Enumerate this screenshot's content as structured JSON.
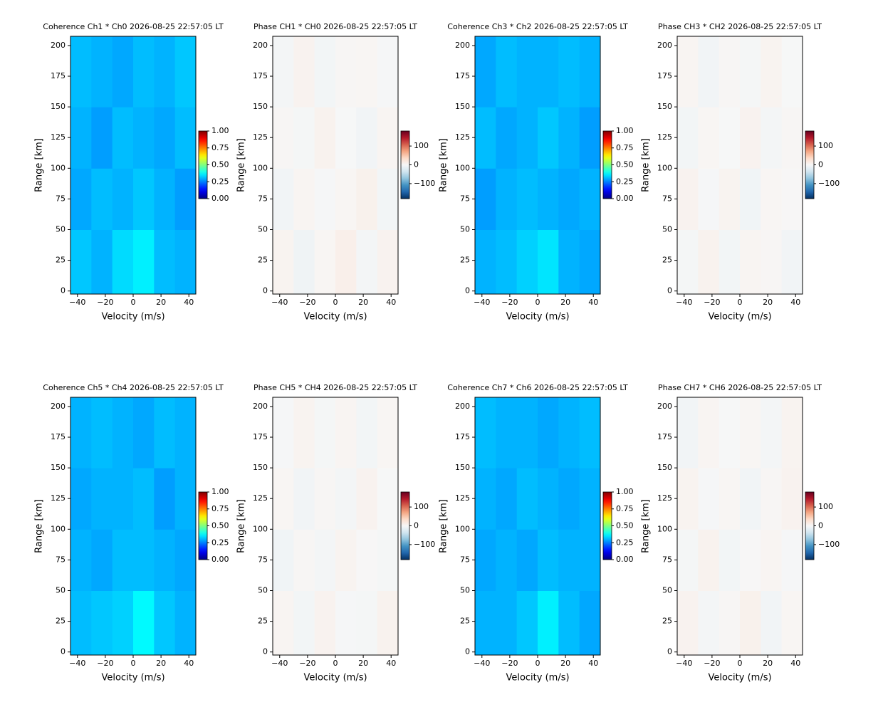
{
  "chart_data": [
    {
      "type": "heatmap",
      "title": "Coherence Ch1 * Ch0 2026-08-25 22:57:05 LT",
      "xlabel": "Velocity (m/s)",
      "ylabel": "Range [km]",
      "colormap": "jet",
      "xlim": [
        -45,
        45
      ],
      "ylim": [
        -2.5,
        207.5
      ],
      "xticks": [
        {
          "value": -40,
          "label": "−40"
        },
        {
          "value": -20,
          "label": "−20"
        },
        0,
        20,
        40
      ],
      "yticks": [
        0,
        25,
        50,
        75,
        100,
        125,
        150,
        175,
        200
      ],
      "xbins": [
        -45,
        -30,
        -15,
        0,
        15,
        30,
        45
      ],
      "ybins": [
        -2.5,
        50,
        100,
        150,
        207.5
      ],
      "values": [
        [
          0.32,
          0.3,
          0.34,
          0.36,
          0.31,
          0.3
        ],
        [
          0.29,
          0.31,
          0.3,
          0.32,
          0.3,
          0.28
        ],
        [
          0.3,
          0.28,
          0.31,
          0.3,
          0.29,
          0.31
        ],
        [
          0.31,
          0.3,
          0.29,
          0.31,
          0.3,
          0.32
        ]
      ],
      "clim": [
        0,
        1
      ],
      "cticks": [
        {
          "value": 0,
          "label": "0.00"
        },
        {
          "value": 0.25,
          "label": "0.25"
        },
        {
          "value": 0.5,
          "label": "0.50"
        },
        {
          "value": 0.75,
          "label": "0.75"
        },
        {
          "value": 1,
          "label": "1.00"
        }
      ]
    },
    {
      "type": "heatmap",
      "title": "Phase CH1 * CH0 2026-08-25 22:57:05 LT",
      "xlabel": "Velocity (m/s)",
      "ylabel": "Range [km]",
      "colormap": "RdBu_r",
      "xlim": [
        -45,
        45
      ],
      "ylim": [
        -2.5,
        207.5
      ],
      "xticks": [
        {
          "value": -40,
          "label": "−40"
        },
        {
          "value": -20,
          "label": "−20"
        },
        0,
        20,
        40
      ],
      "yticks": [
        0,
        25,
        50,
        75,
        100,
        125,
        150,
        175,
        200
      ],
      "xbins": [
        -45,
        -30,
        -15,
        0,
        15,
        30,
        45
      ],
      "ybins": [
        -2.5,
        50,
        100,
        150,
        207.5
      ],
      "values": [
        [
          5,
          -8,
          3,
          10,
          -4,
          6
        ],
        [
          -6,
          4,
          -2,
          3,
          8,
          -5
        ],
        [
          2,
          -3,
          7,
          -1,
          -6,
          4
        ],
        [
          -4,
          6,
          -5,
          2,
          3,
          -2
        ]
      ],
      "clim": [
        -180,
        180
      ],
      "cticks": [
        {
          "value": -100,
          "label": "−100"
        },
        0,
        100
      ]
    },
    {
      "type": "heatmap",
      "title": "Coherence Ch3 * Ch2 2026-08-25 22:57:05 LT",
      "xlabel": "Velocity (m/s)",
      "ylabel": "Range [km]",
      "colormap": "jet",
      "xlim": [
        -45,
        45
      ],
      "ylim": [
        -2.5,
        207.5
      ],
      "xticks": [
        {
          "value": -40,
          "label": "−40"
        },
        {
          "value": -20,
          "label": "−20"
        },
        0,
        20,
        40
      ],
      "yticks": [
        0,
        25,
        50,
        75,
        100,
        125,
        150,
        175,
        200
      ],
      "xbins": [
        -45,
        -30,
        -15,
        0,
        15,
        30,
        45
      ],
      "ybins": [
        -2.5,
        50,
        100,
        150,
        207.5
      ],
      "values": [
        [
          0.3,
          0.31,
          0.33,
          0.35,
          0.3,
          0.29
        ],
        [
          0.28,
          0.3,
          0.31,
          0.3,
          0.29,
          0.3
        ],
        [
          0.31,
          0.29,
          0.3,
          0.32,
          0.3,
          0.28
        ],
        [
          0.29,
          0.31,
          0.3,
          0.3,
          0.31,
          0.3
        ]
      ],
      "clim": [
        0,
        1
      ],
      "cticks": [
        {
          "value": 0,
          "label": "0.00"
        },
        {
          "value": 0.25,
          "label": "0.25"
        },
        {
          "value": 0.5,
          "label": "0.50"
        },
        {
          "value": 0.75,
          "label": "0.75"
        },
        {
          "value": 1,
          "label": "1.00"
        }
      ]
    },
    {
      "type": "heatmap",
      "title": "Phase CH3 * CH2 2026-08-25 22:57:05 LT",
      "xlabel": "Velocity (m/s)",
      "ylabel": "Range [km]",
      "colormap": "RdBu_r",
      "xlim": [
        -45,
        45
      ],
      "ylim": [
        -2.5,
        207.5
      ],
      "xticks": [
        {
          "value": -40,
          "label": "−40"
        },
        {
          "value": -20,
          "label": "−20"
        },
        0,
        20,
        40
      ],
      "yticks": [
        0,
        25,
        50,
        75,
        100,
        125,
        150,
        175,
        200
      ],
      "xbins": [
        -45,
        -30,
        -15,
        0,
        15,
        30,
        45
      ],
      "ybins": [
        -2.5,
        50,
        100,
        150,
        207.5
      ],
      "values": [
        [
          -3,
          7,
          -5,
          4,
          2,
          -6
        ],
        [
          6,
          -2,
          5,
          -7,
          3,
          1
        ],
        [
          -5,
          3,
          -1,
          6,
          -4,
          2
        ],
        [
          4,
          -6,
          2,
          -3,
          5,
          -1
        ]
      ],
      "clim": [
        -180,
        180
      ],
      "cticks": [
        {
          "value": -100,
          "label": "−100"
        },
        0,
        100
      ]
    },
    {
      "type": "heatmap",
      "title": "Coherence Ch5 * Ch4 2026-08-25 22:57:05 LT",
      "xlabel": "Velocity (m/s)",
      "ylabel": "Range [km]",
      "colormap": "jet",
      "xlim": [
        -45,
        45
      ],
      "ylim": [
        -2.5,
        207.5
      ],
      "xticks": [
        {
          "value": -40,
          "label": "−40"
        },
        {
          "value": -20,
          "label": "−20"
        },
        0,
        20,
        40
      ],
      "yticks": [
        0,
        25,
        50,
        75,
        100,
        125,
        150,
        175,
        200
      ],
      "xbins": [
        -45,
        -30,
        -15,
        0,
        15,
        30,
        45
      ],
      "ybins": [
        -2.5,
        50,
        100,
        150,
        207.5
      ],
      "values": [
        [
          0.31,
          0.32,
          0.33,
          0.37,
          0.32,
          0.3
        ],
        [
          0.3,
          0.29,
          0.31,
          0.31,
          0.3,
          0.29
        ],
        [
          0.29,
          0.3,
          0.3,
          0.31,
          0.28,
          0.3
        ],
        [
          0.3,
          0.31,
          0.3,
          0.29,
          0.31,
          0.3
        ]
      ],
      "clim": [
        0,
        1
      ],
      "cticks": [
        {
          "value": 0,
          "label": "0.00"
        },
        {
          "value": 0.25,
          "label": "0.25"
        },
        {
          "value": 0.5,
          "label": "0.50"
        },
        {
          "value": 0.75,
          "label": "0.75"
        },
        {
          "value": 1,
          "label": "1.00"
        }
      ]
    },
    {
      "type": "heatmap",
      "title": "Phase CH5 * CH4 2026-08-25 22:57:05 LT",
      "xlabel": "Velocity (m/s)",
      "ylabel": "Range [km]",
      "colormap": "RdBu_r",
      "xlim": [
        -45,
        45
      ],
      "ylim": [
        -2.5,
        207.5
      ],
      "xticks": [
        {
          "value": -40,
          "label": "−40"
        },
        {
          "value": -20,
          "label": "−20"
        },
        0,
        20,
        40
      ],
      "yticks": [
        0,
        25,
        50,
        75,
        100,
        125,
        150,
        175,
        200
      ],
      "xbins": [
        -45,
        -30,
        -15,
        0,
        15,
        30,
        45
      ],
      "ybins": [
        -2.5,
        50,
        100,
        150,
        207.5
      ],
      "values": [
        [
          4,
          -5,
          6,
          -2,
          -3,
          7
        ],
        [
          -7,
          2,
          -4,
          5,
          1,
          -3
        ],
        [
          3,
          -6,
          2,
          -4,
          6,
          -1
        ],
        [
          -2,
          5,
          -3,
          4,
          -5,
          3
        ]
      ],
      "clim": [
        -180,
        180
      ],
      "cticks": [
        {
          "value": -100,
          "label": "−100"
        },
        0,
        100
      ]
    },
    {
      "type": "heatmap",
      "title": "Coherence Ch7 * Ch6 2026-08-25 22:57:05 LT",
      "xlabel": "Velocity (m/s)",
      "ylabel": "Range [km]",
      "colormap": "jet",
      "xlim": [
        -45,
        45
      ],
      "ylim": [
        -2.5,
        207.5
      ],
      "xticks": [
        {
          "value": -40,
          "label": "−40"
        },
        {
          "value": -20,
          "label": "−20"
        },
        0,
        20,
        40
      ],
      "yticks": [
        0,
        25,
        50,
        75,
        100,
        125,
        150,
        175,
        200
      ],
      "xbins": [
        -45,
        -30,
        -15,
        0,
        15,
        30,
        45
      ],
      "ybins": [
        -2.5,
        50,
        100,
        150,
        207.5
      ],
      "values": [
        [
          0.3,
          0.3,
          0.32,
          0.36,
          0.31,
          0.29
        ],
        [
          0.29,
          0.3,
          0.29,
          0.31,
          0.3,
          0.3
        ],
        [
          0.3,
          0.29,
          0.31,
          0.3,
          0.29,
          0.3
        ],
        [
          0.31,
          0.3,
          0.3,
          0.29,
          0.3,
          0.31
        ]
      ],
      "clim": [
        0,
        1
      ],
      "cticks": [
        {
          "value": 0,
          "label": "0.00"
        },
        {
          "value": 0.25,
          "label": "0.25"
        },
        {
          "value": 0.5,
          "label": "0.50"
        },
        {
          "value": 0.75,
          "label": "0.75"
        },
        {
          "value": 1,
          "label": "1.00"
        }
      ]
    },
    {
      "type": "heatmap",
      "title": "Phase CH7 * CH6 2026-08-25 22:57:05 LT",
      "xlabel": "Velocity (m/s)",
      "ylabel": "Range [km]",
      "colormap": "RdBu_r",
      "xlim": [
        -45,
        45
      ],
      "ylim": [
        -2.5,
        207.5
      ],
      "xticks": [
        {
          "value": -40,
          "label": "−40"
        },
        {
          "value": -20,
          "label": "−20"
        },
        0,
        20,
        40
      ],
      "yticks": [
        0,
        25,
        50,
        75,
        100,
        125,
        150,
        175,
        200
      ],
      "xbins": [
        -45,
        -30,
        -15,
        0,
        15,
        30,
        45
      ],
      "ybins": [
        -2.5,
        50,
        100,
        150,
        207.5
      ],
      "values": [
        [
          6,
          -4,
          2,
          8,
          -6,
          3
        ],
        [
          -3,
          7,
          -5,
          1,
          4,
          -2
        ],
        [
          5,
          -2,
          3,
          -6,
          2,
          6
        ],
        [
          -6,
          4,
          -1,
          3,
          -4,
          5
        ]
      ],
      "clim": [
        -180,
        180
      ],
      "cticks": [
        {
          "value": -100,
          "label": "−100"
        },
        0,
        100
      ]
    }
  ]
}
